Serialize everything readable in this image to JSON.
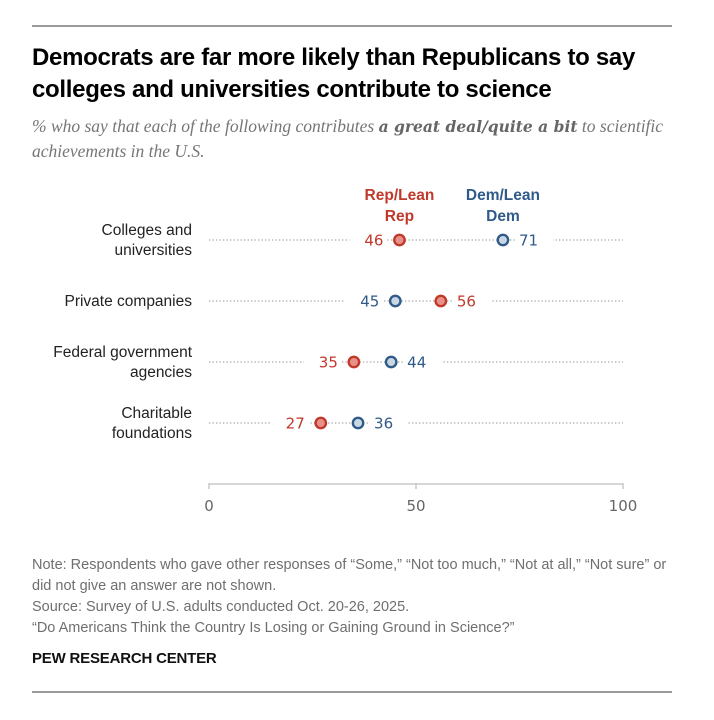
{
  "title": "Democrats are far more likely than Republicans to say colleges and universities contribute to science",
  "subtitle_prefix": "% who say that each of the following contributes ",
  "subtitle_bold": "a great deal/quite a bit",
  "subtitle_suffix": " to scientific achievements in the U.S.",
  "colors": {
    "rep": "#c0392b",
    "rep_fill": "#e8918a",
    "dem": "#2f5a8a",
    "dem_fill": "#c9d7e2",
    "gridline": "#a6a6a6",
    "axis": "#c8c8c8"
  },
  "chart_data": {
    "type": "dot",
    "title": "Democrats are far more likely than Republicans to say colleges and universities contribute to science",
    "xlabel": "",
    "ylabel": "",
    "xlim": [
      0,
      100
    ],
    "x_ticks": [
      0,
      50,
      100
    ],
    "x_tick_labels": [
      "0",
      "50",
      "100"
    ],
    "grid": false,
    "legend_placement": "top (direct labels above first row)",
    "categories": [
      [
        "Colleges and",
        "universities"
      ],
      [
        "Private companies"
      ],
      [
        "Federal government",
        "agencies"
      ],
      [
        "Charitable",
        "foundations"
      ]
    ],
    "series": [
      {
        "name": "Rep/Lean Rep",
        "legend_lines": [
          "Rep/Lean",
          "Rep"
        ],
        "key": "rep",
        "values": [
          46,
          56,
          35,
          27
        ]
      },
      {
        "name": "Dem/Lean Dem",
        "legend_lines": [
          "Dem/Lean",
          "Dem"
        ],
        "key": "dem",
        "values": [
          71,
          45,
          44,
          36
        ]
      }
    ]
  },
  "footer": {
    "note": "Note: Respondents who gave other responses of “Some,” “Not too much,” “Not at all,” “Not sure” or did not give an answer are not shown.",
    "source": "Source: Survey of U.S. adults conducted Oct. 20-26, 2025.",
    "report": "“Do Americans Think the Country Is Losing or Gaining Ground in Science?”",
    "brand": "PEW RESEARCH CENTER"
  }
}
